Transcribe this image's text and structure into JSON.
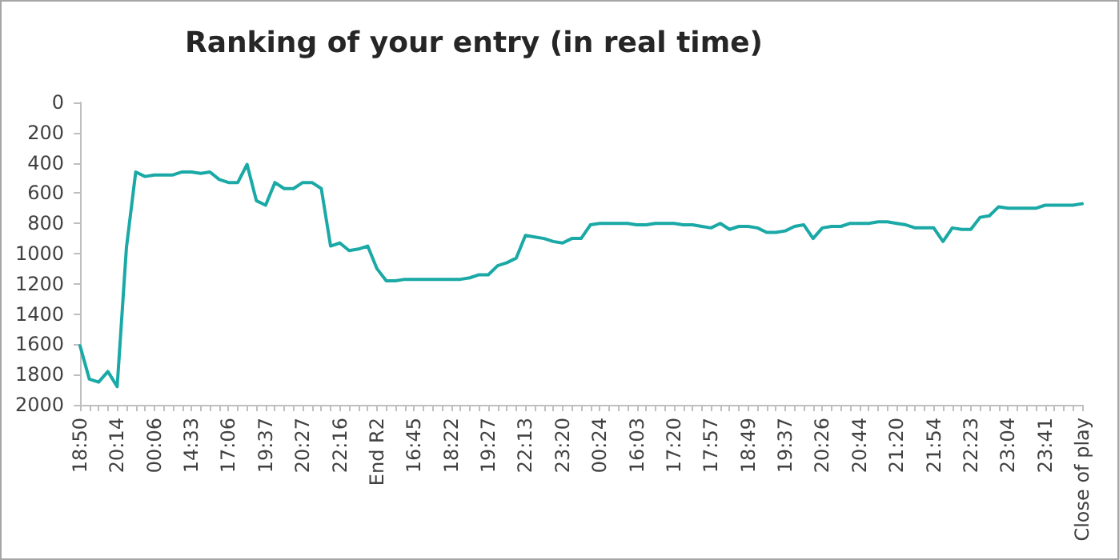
{
  "chart_data": {
    "type": "line",
    "title": "Ranking of your entry (in real time)",
    "categories": [
      "18:50",
      null,
      null,
      null,
      "20:14",
      null,
      null,
      null,
      "00:06",
      null,
      null,
      null,
      "14:33",
      null,
      null,
      null,
      "17:06",
      null,
      null,
      null,
      "19:37",
      null,
      null,
      null,
      "20:27",
      null,
      null,
      null,
      "22:16",
      null,
      null,
      null,
      "End R2",
      null,
      null,
      null,
      "16:45",
      null,
      null,
      null,
      "18:22",
      null,
      null,
      null,
      "19:27",
      null,
      null,
      null,
      "22:13",
      null,
      null,
      null,
      "23:20",
      null,
      null,
      null,
      "00:24",
      null,
      null,
      null,
      "16:03",
      null,
      null,
      null,
      "17:20",
      null,
      null,
      null,
      "17:57",
      null,
      null,
      null,
      "18:49",
      null,
      null,
      null,
      "19:37",
      null,
      null,
      null,
      "20:26",
      null,
      null,
      null,
      "20:44",
      null,
      null,
      null,
      "21:20",
      null,
      null,
      null,
      "21:54",
      null,
      null,
      null,
      "22:23",
      null,
      null,
      null,
      "23:04",
      null,
      null,
      null,
      "23:41",
      null,
      null,
      null,
      "Close of play"
    ],
    "series": [
      {
        "color": "#1aa9a6",
        "values": [
          1610,
          1830,
          1850,
          1780,
          1880,
          960,
          460,
          490,
          480,
          480,
          480,
          460,
          460,
          470,
          460,
          510,
          530,
          530,
          410,
          650,
          680,
          530,
          570,
          570,
          530,
          530,
          570,
          950,
          930,
          980,
          970,
          950,
          1100,
          1180,
          1180,
          1170,
          1170,
          1170,
          1170,
          1170,
          1170,
          1170,
          1160,
          1140,
          1140,
          1080,
          1060,
          1030,
          880,
          890,
          900,
          920,
          930,
          900,
          900,
          810,
          800,
          800,
          800,
          800,
          810,
          810,
          800,
          800,
          800,
          810,
          810,
          820,
          830,
          800,
          840,
          820,
          820,
          830,
          860,
          860,
          850,
          820,
          810,
          900,
          830,
          820,
          820,
          800,
          800,
          800,
          790,
          790,
          800,
          810,
          830,
          830,
          830,
          920,
          830,
          840,
          840,
          760,
          750,
          690,
          700,
          700,
          700,
          700,
          680,
          680,
          680,
          680,
          670
        ]
      }
    ],
    "ylim": [
      2000,
      0
    ],
    "yticks": [
      0,
      200,
      400,
      600,
      800,
      1000,
      1200,
      1400,
      1600,
      1800,
      2000
    ],
    "grid": false,
    "marker": "none",
    "line_style": "solid"
  }
}
